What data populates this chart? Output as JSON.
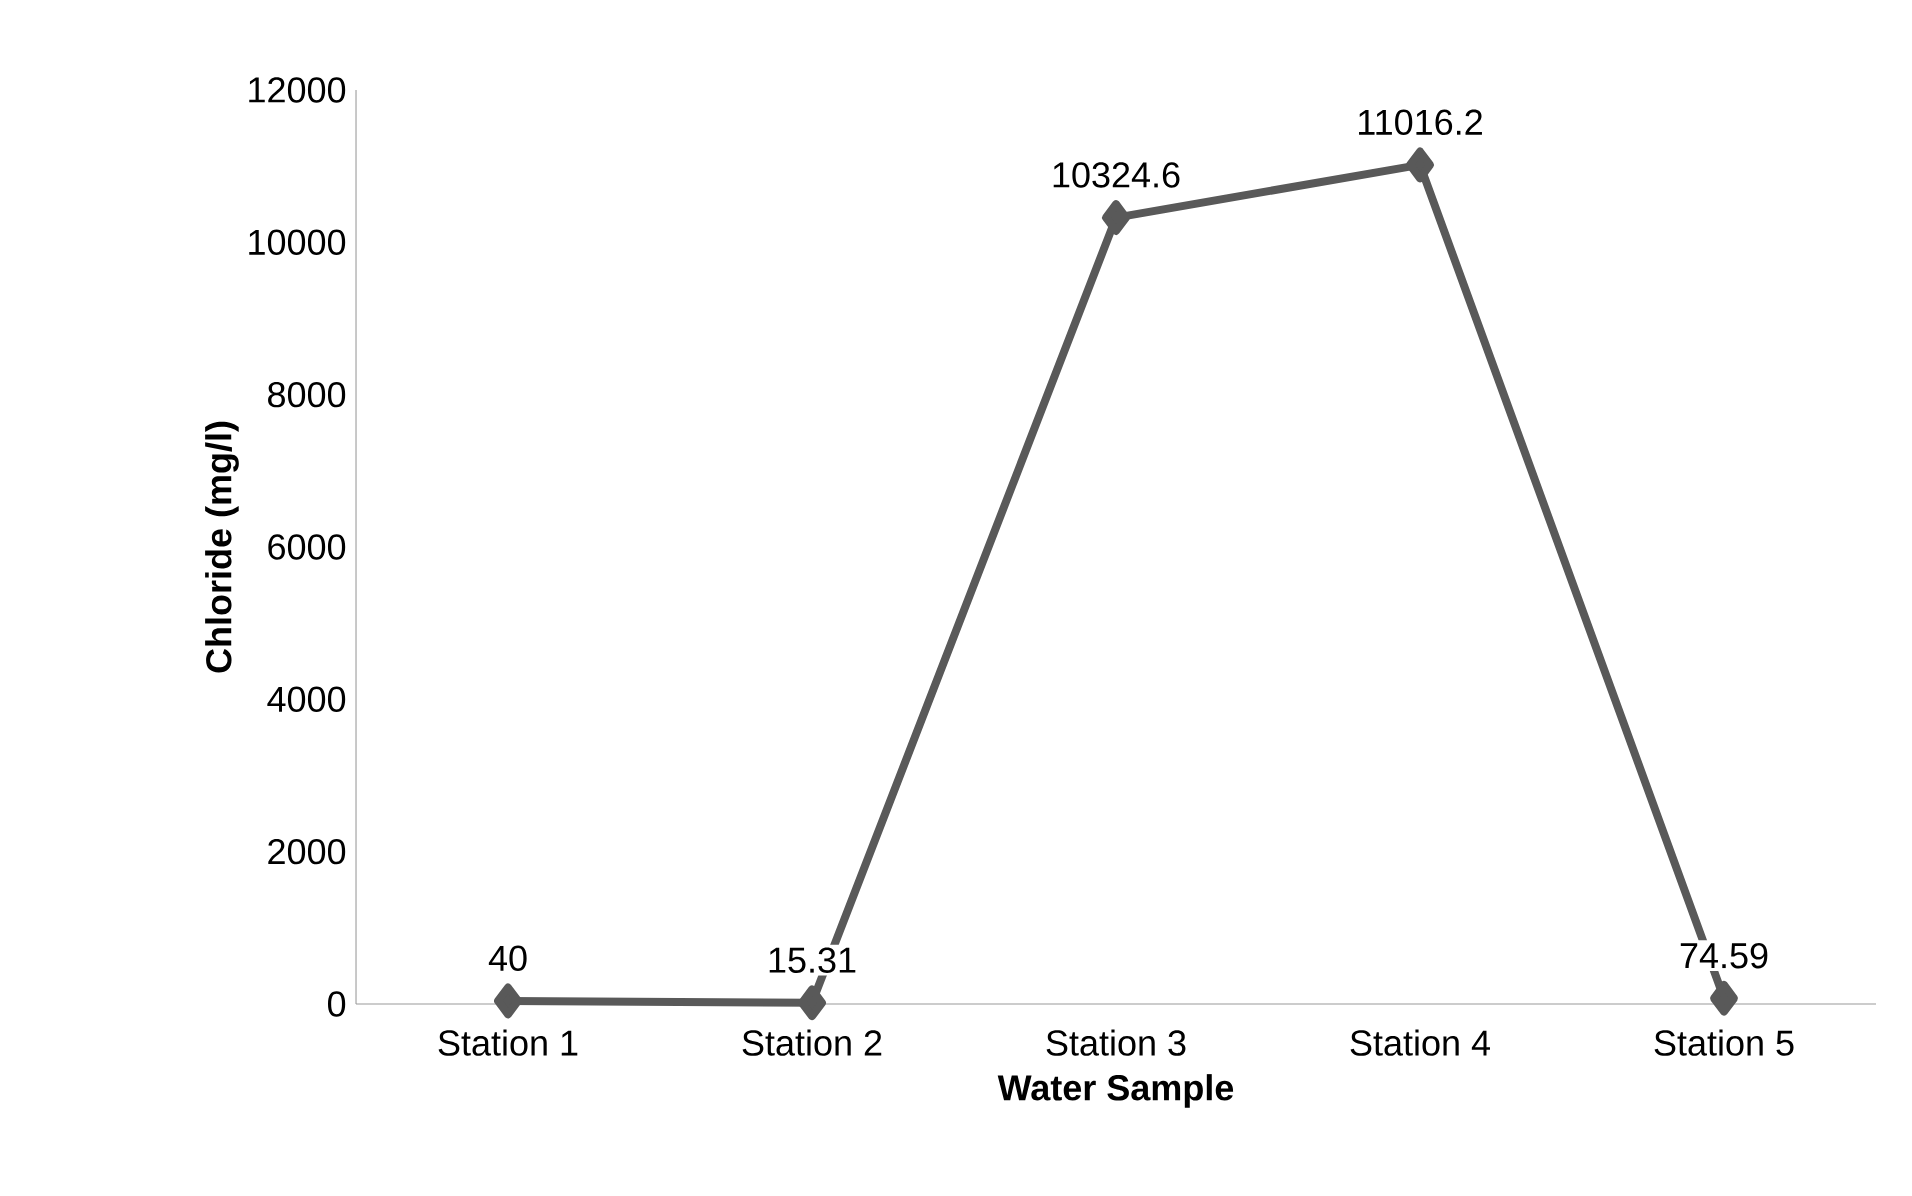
{
  "chart_data": {
    "type": "line",
    "xlabel": "Water Sample",
    "ylabel": "Chloride (mg/l)",
    "categories": [
      "Station 1",
      "Station 2",
      "Station 3",
      "Station 4",
      "Station 5"
    ],
    "values": [
      40,
      15.31,
      10324.6,
      11016.2,
      74.59
    ],
    "color": "#595959",
    "marker": "diamond",
    "line_style": "solid",
    "data_labels": true,
    "ylim": [
      0,
      12000
    ],
    "yticks": [
      0,
      2000,
      4000,
      6000,
      8000,
      10000,
      12000
    ],
    "grid": false
  }
}
